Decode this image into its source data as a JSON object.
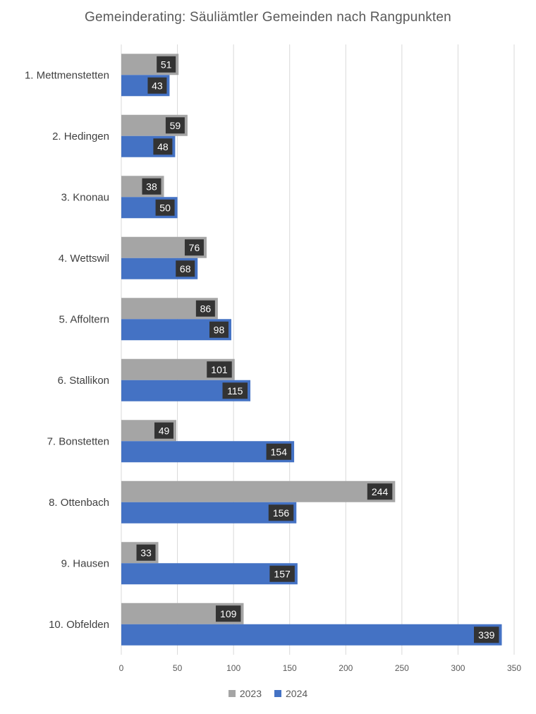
{
  "chart_data": {
    "type": "bar",
    "orientation": "horizontal",
    "title": "Gemeinderating: Säuliämtler Gemeinden nach Rangpunkten",
    "categories": [
      "1. Mettmenstetten",
      "2. Hedingen",
      "3. Knonau",
      "4. Wettswil",
      "5. Affoltern",
      "6. Stallikon",
      "7. Bonstetten",
      "8. Ottenbach",
      "9. Hausen",
      "10. Obfelden"
    ],
    "series": [
      {
        "name": "2023",
        "color": "#a5a5a5",
        "values": [
          51,
          59,
          38,
          76,
          86,
          101,
          49,
          244,
          33,
          109
        ]
      },
      {
        "name": "2024",
        "color": "#4472c4",
        "values": [
          43,
          48,
          50,
          68,
          98,
          115,
          154,
          156,
          157,
          339
        ]
      }
    ],
    "xlim": [
      0,
      350
    ],
    "xticks": [
      "0",
      "50",
      "100",
      "150",
      "200",
      "250",
      "300",
      "350"
    ],
    "grid": "vertical",
    "legend": "bottom",
    "data_labels": true
  }
}
